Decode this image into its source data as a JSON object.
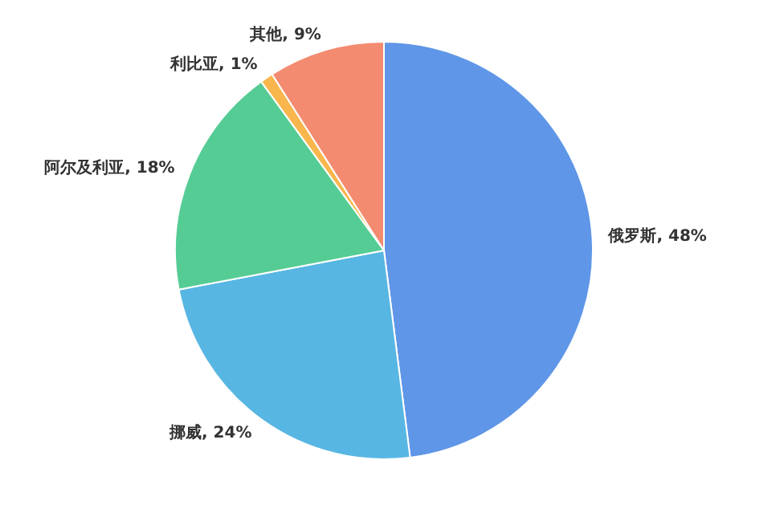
{
  "chart_data": {
    "type": "pie",
    "categories": [
      "俄罗斯",
      "挪威",
      "阿尔及利亚",
      "利比亚",
      "其他"
    ],
    "values": [
      48,
      24,
      18,
      1,
      9
    ],
    "colors": [
      "#5f96e7",
      "#58b6e3",
      "#56cc95",
      "#f8b64c",
      "#f38b71"
    ],
    "value_labels": [
      "48%",
      "24%",
      "18%",
      "1%",
      "9%"
    ],
    "legend": false
  }
}
